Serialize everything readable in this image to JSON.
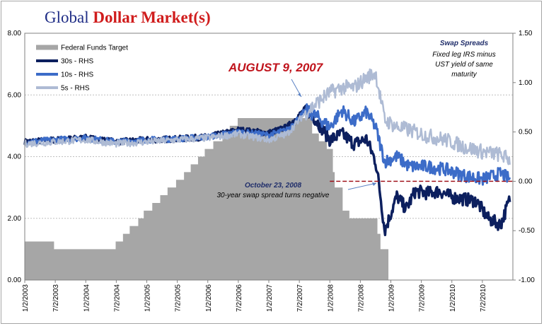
{
  "title": {
    "part1": "Global",
    "part2": "Dollar Market(s)"
  },
  "chart_data": {
    "type": "area+line",
    "title": "Global Dollar Market(s)",
    "left_axis": {
      "ylim": [
        0,
        8
      ],
      "ticks": [
        "0.00",
        "2.00",
        "4.00",
        "6.00",
        "8.00"
      ]
    },
    "right_axis": {
      "ylim": [
        -1.0,
        1.5
      ],
      "ticks": [
        "-1.00",
        "-0.50",
        "0.00",
        "0.50",
        "1.00",
        "1.50"
      ]
    },
    "x_ticks": [
      "1/2/2003",
      "7/2/2003",
      "1/2/2004",
      "7/2/2004",
      "1/2/2005",
      "7/2/2005",
      "1/2/2006",
      "7/2/2006",
      "1/2/2007",
      "7/2/2007",
      "1/2/2008",
      "7/2/2008",
      "1/2/2009",
      "7/2/2009",
      "1/2/2010",
      "7/2/2010"
    ],
    "xlim": [
      2003.0,
      2011.0
    ],
    "grid": "horizontal",
    "legend_placement": "top-left",
    "legend": [
      "Federal Funds Target",
      "30s - RHS",
      "10s - RHS",
      "5s - RHS"
    ],
    "colors": {
      "fed": "#a6a6a6",
      "s30": "#0c1f5e",
      "s10": "#3c6cc8",
      "s5": "#aebbd4",
      "zero_line": "#a0141c",
      "grid": "#bfbfbf"
    },
    "fed_funds_target": {
      "dates": [
        2003.0,
        2003.48,
        2004.49,
        2004.61,
        2004.72,
        2004.86,
        2004.95,
        2005.09,
        2005.22,
        2005.34,
        2005.48,
        2005.61,
        2005.72,
        2005.84,
        2005.95,
        2006.09,
        2006.24,
        2006.36,
        2006.49,
        2007.71,
        2007.82,
        2007.95,
        2008.05,
        2008.08,
        2008.21,
        2008.32,
        2008.78,
        2008.83,
        2008.96
      ],
      "values": [
        1.25,
        1.0,
        1.25,
        1.5,
        1.75,
        2.0,
        2.25,
        2.5,
        2.75,
        3.0,
        3.25,
        3.5,
        3.75,
        4.0,
        4.25,
        4.5,
        4.75,
        5.0,
        5.25,
        4.75,
        4.5,
        4.25,
        3.5,
        3.0,
        2.25,
        2.0,
        1.5,
        1.0,
        0.125
      ]
    },
    "series": [
      {
        "name": "30s - RHS",
        "axis": "right",
        "dates": [
          2003.0,
          2003.5,
          2004.0,
          2004.5,
          2005.0,
          2005.5,
          2006.0,
          2006.5,
          2007.0,
          2007.3,
          2007.61,
          2007.8,
          2008.0,
          2008.2,
          2008.4,
          2008.6,
          2008.75,
          2008.81,
          2008.9,
          2009.1,
          2009.25,
          2009.4,
          2009.6,
          2009.8,
          2010.0,
          2010.2,
          2010.4,
          2010.6,
          2010.8,
          2010.95
        ],
        "values": [
          0.4,
          0.42,
          0.44,
          0.4,
          0.42,
          0.43,
          0.45,
          0.52,
          0.49,
          0.55,
          0.74,
          0.6,
          0.42,
          0.48,
          0.38,
          0.43,
          0.2,
          -0.05,
          -0.5,
          -0.15,
          -0.28,
          -0.1,
          -0.12,
          -0.1,
          -0.16,
          -0.18,
          -0.2,
          -0.38,
          -0.44,
          -0.18
        ]
      },
      {
        "name": "10s - RHS",
        "axis": "right",
        "dates": [
          2003.0,
          2003.5,
          2004.0,
          2004.5,
          2005.0,
          2005.5,
          2006.0,
          2006.5,
          2007.0,
          2007.3,
          2007.61,
          2007.8,
          2008.0,
          2008.2,
          2008.4,
          2008.6,
          2008.75,
          2008.9,
          2009.1,
          2009.3,
          2009.6,
          2009.9,
          2010.2,
          2010.5,
          2010.8,
          2010.95
        ],
        "values": [
          0.4,
          0.42,
          0.44,
          0.4,
          0.42,
          0.43,
          0.45,
          0.5,
          0.47,
          0.52,
          0.72,
          0.65,
          0.55,
          0.72,
          0.6,
          0.7,
          0.55,
          0.2,
          0.25,
          0.15,
          0.15,
          0.12,
          0.06,
          0.02,
          0.08,
          0.02
        ]
      },
      {
        "name": "5s - RHS",
        "axis": "right",
        "dates": [
          2003.0,
          2003.5,
          2004.0,
          2004.5,
          2005.0,
          2005.5,
          2006.0,
          2006.5,
          2007.0,
          2007.3,
          2007.61,
          2007.8,
          2008.0,
          2008.2,
          2008.4,
          2008.6,
          2008.75,
          2008.9,
          2009.1,
          2009.3,
          2009.6,
          2009.9,
          2010.2,
          2010.5,
          2010.8,
          2010.95
        ],
        "values": [
          0.38,
          0.4,
          0.42,
          0.38,
          0.4,
          0.42,
          0.44,
          0.48,
          0.42,
          0.48,
          0.7,
          0.8,
          0.9,
          0.95,
          0.95,
          1.05,
          1.1,
          0.62,
          0.55,
          0.52,
          0.46,
          0.42,
          0.35,
          0.3,
          0.27,
          0.22
        ]
      }
    ],
    "zero_line": {
      "axis": "right",
      "value": 0.0,
      "from": 2008.0,
      "to": 2011.0
    },
    "annotations": [
      {
        "key": "aug",
        "text": "AUGUST 9, 2007"
      },
      {
        "key": "oct1",
        "text": "October 23, 2008"
      },
      {
        "key": "oct2",
        "text": "30-year swap spread turns negative"
      },
      {
        "key": "sw1",
        "text": "Swap Spreads"
      },
      {
        "key": "sw2",
        "text": "Fixed leg IRS minus"
      },
      {
        "key": "sw3",
        "text": "UST yield of same"
      },
      {
        "key": "sw4",
        "text": "maturity"
      }
    ]
  }
}
